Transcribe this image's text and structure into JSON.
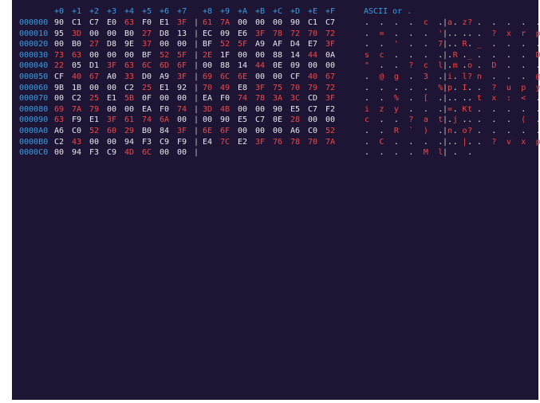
{
  "header": {
    "cols_a": [
      "+0",
      "+1",
      "+2",
      "+3",
      "+4",
      "+5",
      "+6",
      "+7"
    ],
    "cols_b": [
      "+8",
      "+9",
      "+A",
      "+B",
      "+C",
      "+D",
      "+E",
      "+F"
    ],
    "ascii_title": "ASCII or ."
  },
  "rows": [
    {
      "offset": "000000",
      "bytes": [
        "90",
        "C1",
        "C7",
        "E0",
        "63",
        "F0",
        "E1",
        "3F",
        "61",
        "7A",
        "00",
        "00",
        "00",
        "90",
        "C1",
        "C7"
      ],
      "red": [
        0,
        0,
        0,
        0,
        1,
        0,
        0,
        1,
        1,
        1,
        0,
        0,
        0,
        0,
        0,
        0
      ],
      "ascii_left": ". . . . c . . ?",
      "ascii_right": "a z . . . . . ."
    },
    {
      "offset": "000010",
      "bytes": [
        "95",
        "3D",
        "00",
        "00",
        "B0",
        "27",
        "D8",
        "13",
        "EC",
        "09",
        "E6",
        "3F",
        "78",
        "72",
        "70",
        "72"
      ],
      "red": [
        0,
        1,
        0,
        0,
        0,
        1,
        0,
        0,
        0,
        0,
        0,
        1,
        1,
        1,
        1,
        1
      ],
      "ascii_left": ". = . . . ' . .",
      "ascii_right": ". . . ? x r p r"
    },
    {
      "offset": "000020",
      "bytes": [
        "00",
        "B0",
        "27",
        "D8",
        "9E",
        "37",
        "00",
        "00",
        "BF",
        "52",
        "5F",
        "A9",
        "AF",
        "D4",
        "E7",
        "3F"
      ],
      "red": [
        0,
        0,
        1,
        0,
        0,
        1,
        0,
        0,
        0,
        1,
        1,
        0,
        0,
        0,
        0,
        1
      ],
      "ascii_left": ". . ' . . 7 . .",
      "ascii_right": ". R _ . . . . ?"
    },
    {
      "offset": "000030",
      "bytes": [
        "73",
        "63",
        "00",
        "00",
        "00",
        "BF",
        "52",
        "5F",
        "2E",
        "1F",
        "00",
        "00",
        "88",
        "14",
        "44",
        "0A"
      ],
      "red": [
        1,
        1,
        0,
        0,
        0,
        0,
        1,
        1,
        1,
        0,
        0,
        0,
        0,
        0,
        1,
        0
      ],
      "ascii_left": "s c . . . . R _",
      "ascii_right": ". . . . . . D ."
    },
    {
      "offset": "000040",
      "bytes": [
        "22",
        "05",
        "D1",
        "3F",
        "63",
        "6C",
        "6D",
        "6F",
        "00",
        "88",
        "14",
        "44",
        "0E",
        "09",
        "00",
        "00"
      ],
      "red": [
        1,
        0,
        0,
        1,
        1,
        1,
        1,
        1,
        0,
        0,
        0,
        1,
        0,
        0,
        0,
        0
      ],
      "ascii_left": "\" . . ? c l m o",
      "ascii_right": ". . . D . . . ."
    },
    {
      "offset": "000050",
      "bytes": [
        "CF",
        "40",
        "67",
        "A0",
        "33",
        "D0",
        "A9",
        "3F",
        "69",
        "6C",
        "6E",
        "00",
        "00",
        "CF",
        "40",
        "67"
      ],
      "red": [
        0,
        1,
        1,
        0,
        1,
        0,
        0,
        1,
        1,
        1,
        1,
        0,
        0,
        0,
        1,
        1
      ],
      "ascii_left": ". @ g . 3 . . ?",
      "ascii_right": "i l n . . . @ g"
    },
    {
      "offset": "000060",
      "bytes": [
        "9B",
        "1B",
        "00",
        "00",
        "C2",
        "25",
        "E1",
        "92",
        "70",
        "49",
        "E8",
        "3F",
        "75",
        "70",
        "79",
        "72"
      ],
      "red": [
        0,
        0,
        0,
        0,
        0,
        1,
        0,
        0,
        1,
        1,
        0,
        1,
        1,
        1,
        1,
        1
      ],
      "ascii_left": ". . . . . % . .",
      "ascii_right": "p I . ? u p y r"
    },
    {
      "offset": "000070",
      "bytes": [
        "00",
        "C2",
        "25",
        "E1",
        "5B",
        "0F",
        "00",
        "00",
        "EA",
        "F0",
        "74",
        "78",
        "3A",
        "3C",
        "CD",
        "3F"
      ],
      "red": [
        0,
        0,
        1,
        0,
        1,
        0,
        0,
        0,
        0,
        0,
        1,
        1,
        1,
        1,
        0,
        1
      ],
      "ascii_left": ". . % . [ . . .",
      "ascii_right": ". . t x : < . ?"
    },
    {
      "offset": "000080",
      "bytes": [
        "69",
        "7A",
        "79",
        "00",
        "00",
        "EA",
        "F0",
        "74",
        "3D",
        "4B",
        "00",
        "00",
        "90",
        "E5",
        "C7",
        "F2"
      ],
      "red": [
        1,
        1,
        1,
        0,
        0,
        0,
        0,
        1,
        1,
        1,
        0,
        0,
        0,
        0,
        0,
        0
      ],
      "ascii_left": "i z y . . . . t",
      "ascii_right": "= K . . . . . ."
    },
    {
      "offset": "000090",
      "bytes": [
        "63",
        "F9",
        "E1",
        "3F",
        "61",
        "74",
        "6A",
        "00",
        "00",
        "90",
        "E5",
        "C7",
        "0E",
        "28",
        "00",
        "00"
      ],
      "red": [
        1,
        0,
        0,
        1,
        1,
        1,
        1,
        0,
        0,
        0,
        0,
        0,
        0,
        1,
        0,
        0
      ],
      "ascii_left": "c . . ? a t j .",
      "ascii_right": ". . . . . ( . ."
    },
    {
      "offset": "0000A0",
      "bytes": [
        "A6",
        "C0",
        "52",
        "60",
        "29",
        "B0",
        "84",
        "3F",
        "6E",
        "6F",
        "00",
        "00",
        "00",
        "A6",
        "C0",
        "52"
      ],
      "red": [
        0,
        0,
        1,
        1,
        1,
        0,
        0,
        1,
        1,
        1,
        0,
        0,
        0,
        0,
        0,
        1
      ],
      "ascii_left": ". . R ` ) . . ?",
      "ascii_right": "n o . . . . . R"
    },
    {
      "offset": "0000B0",
      "bytes": [
        "C2",
        "43",
        "00",
        "00",
        "94",
        "F3",
        "C9",
        "F9",
        "E4",
        "7C",
        "E2",
        "3F",
        "76",
        "78",
        "70",
        "7A"
      ],
      "red": [
        0,
        1,
        0,
        0,
        0,
        0,
        0,
        0,
        0,
        1,
        0,
        1,
        1,
        1,
        1,
        1
      ],
      "ascii_left": ". C . . . . . .",
      "ascii_right": ". | . ? v x p z"
    },
    {
      "offset": "0000C0",
      "bytes": [
        "00",
        "94",
        "F3",
        "C9",
        "4D",
        "6C",
        "00",
        "00"
      ],
      "red": [
        0,
        0,
        0,
        0,
        1,
        1,
        0,
        0
      ],
      "ascii_left": ". . . . M l . .",
      "ascii_right": ""
    }
  ],
  "colors": {
    "background": "#1e1535",
    "offset": "#33a0e8",
    "byte": "#e8e8ec",
    "printable": "#f04848"
  }
}
